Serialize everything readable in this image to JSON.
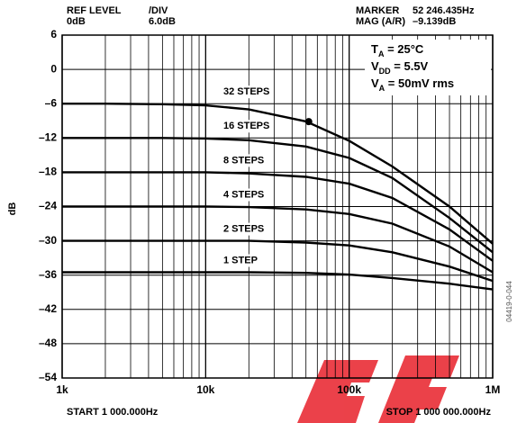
{
  "chart_data": {
    "type": "line",
    "header": {
      "ref_level_label": "REF LEVEL",
      "ref_level": "0dB",
      "div_label": "/DIV",
      "div": "6.0dB",
      "marker_label": "MARKER",
      "marker_freq": "52 246.435Hz",
      "mag_label": "MAG (A/R)",
      "mag": "–9.139dB"
    },
    "start_label": "START 1 000.000Hz",
    "stop_label": "STOP 1 000 000.000Hz",
    "ylabel": "dB",
    "conditions": [
      {
        "main": "T",
        "sub": "A",
        "rest": " = 25°C"
      },
      {
        "main": "V",
        "sub": "DD",
        "rest": " = 5.5V"
      },
      {
        "main": "V",
        "sub": "A",
        "rest": " = 50mV rms"
      }
    ],
    "code": "04419-0-044",
    "x": [
      1000,
      2000,
      5000,
      10000,
      20000,
      50000,
      100000,
      200000,
      500000,
      1000000
    ],
    "series": [
      {
        "name": "32 STEPS",
        "color": "#000000",
        "values": [
          -6,
          -6,
          -6.1,
          -6.3,
          -7,
          -9.1,
          -12.5,
          -17,
          -24,
          -30.5
        ]
      },
      {
        "name": "16 STEPS",
        "color": "#000000",
        "values": [
          -12,
          -12,
          -12,
          -12.1,
          -12.4,
          -13.5,
          -15.5,
          -19,
          -26,
          -32
        ]
      },
      {
        "name": "8 STEPS",
        "color": "#000000",
        "values": [
          -18,
          -18,
          -18,
          -18,
          -18.2,
          -18.8,
          -20,
          -22.5,
          -28,
          -33.5
        ]
      },
      {
        "name": "4 STEPS",
        "color": "#000000",
        "values": [
          -24,
          -24,
          -24,
          -24,
          -24.1,
          -24.5,
          -25.3,
          -27,
          -31,
          -35.5
        ]
      },
      {
        "name": "2 STEPS",
        "color": "#000000",
        "values": [
          -30,
          -30,
          -30,
          -30,
          -30,
          -30.3,
          -30.8,
          -32,
          -34.5,
          -37
        ]
      },
      {
        "name": "1 STEP",
        "color": "#000000",
        "values": [
          -35.5,
          -35.5,
          -35.5,
          -35.5,
          -35.5,
          -35.6,
          -35.9,
          -36.5,
          -37.5,
          -38.5
        ]
      }
    ],
    "marker": {
      "x": 52246.435,
      "y": -9.139
    },
    "xlog": true,
    "xlim": [
      1000,
      1000000
    ],
    "xticks": [
      {
        "value": 1000,
        "label": "1k"
      },
      {
        "value": 10000,
        "label": "10k"
      },
      {
        "value": 100000,
        "label": "100k"
      },
      {
        "value": 1000000,
        "label": "1M"
      }
    ],
    "ylim": [
      -54,
      6
    ],
    "yticks": [
      {
        "value": -54,
        "label": "–54"
      },
      {
        "value": -48,
        "label": "–48"
      },
      {
        "value": -42,
        "label": "–42"
      },
      {
        "value": -36,
        "label": "–36"
      },
      {
        "value": -30,
        "label": "–30"
      },
      {
        "value": -24,
        "label": "–24"
      },
      {
        "value": -18,
        "label": "–18"
      },
      {
        "value": -12,
        "label": "–12"
      },
      {
        "value": -6,
        "label": "–6"
      },
      0,
      6
    ],
    "grid": true
  }
}
